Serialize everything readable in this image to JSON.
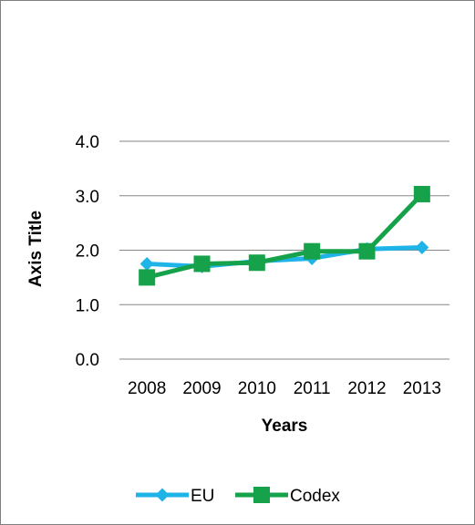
{
  "chart_data": {
    "type": "line",
    "title": "",
    "xlabel": "Years",
    "ylabel": "Axis Title",
    "categories": [
      "2008",
      "2009",
      "2010",
      "2011",
      "2012",
      "2013"
    ],
    "ylim": [
      0,
      4
    ],
    "yticks": [
      "0.0",
      "1.0",
      "2.0",
      "3.0",
      "4.0"
    ],
    "grid": true,
    "legend": "bottom",
    "series": [
      {
        "name": "EU",
        "values": [
          1.75,
          1.7,
          1.8,
          1.85,
          2.02,
          2.05
        ],
        "color": "#1FB4E8",
        "marker": "diamond"
      },
      {
        "name": "Codex",
        "values": [
          1.5,
          1.75,
          1.77,
          1.98,
          1.98,
          3.03
        ],
        "color": "#16A24A",
        "marker": "square"
      }
    ]
  }
}
